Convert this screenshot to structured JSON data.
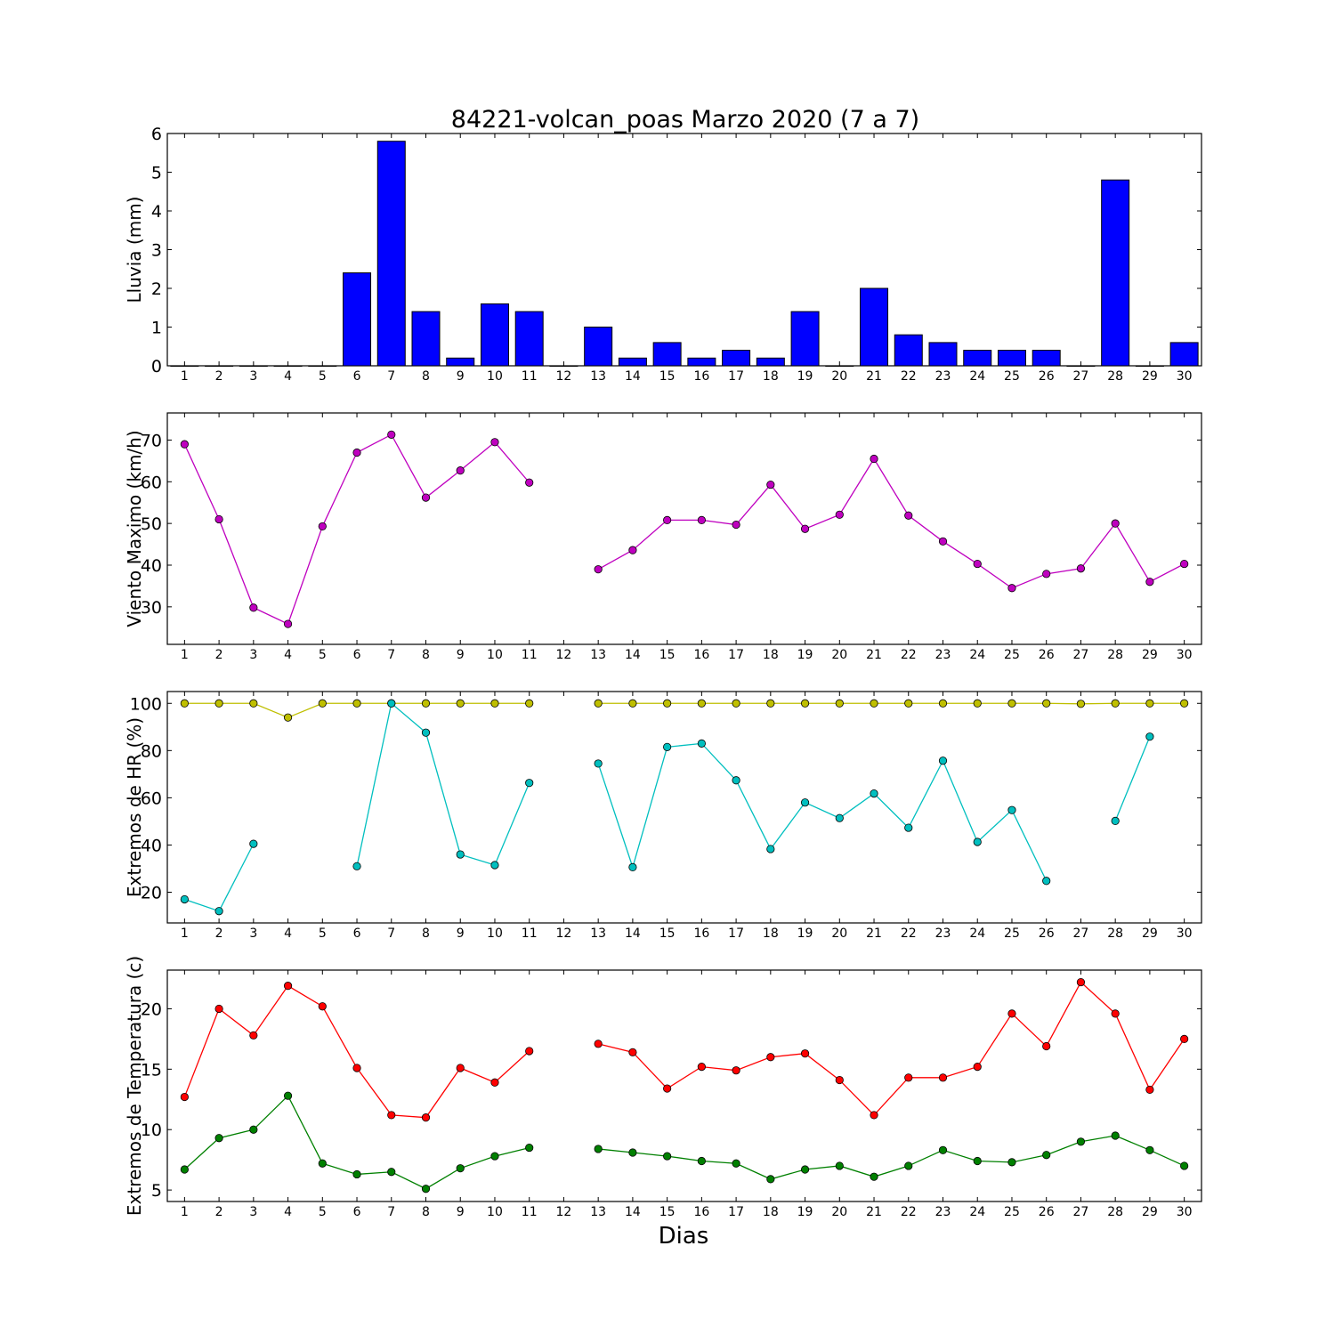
{
  "title": "84221-volcan_poas Marzo 2020  (7 a 7)",
  "xlabel": "Dias",
  "days": [
    1,
    2,
    3,
    4,
    5,
    6,
    7,
    8,
    9,
    10,
    11,
    12,
    13,
    14,
    15,
    16,
    17,
    18,
    19,
    20,
    21,
    22,
    23,
    24,
    25,
    26,
    27,
    28,
    29,
    30
  ],
  "chart_data": [
    {
      "type": "bar",
      "ylabel": "Lluvia (mm)",
      "ylim": [
        0,
        6
      ],
      "yticks": [
        0,
        1,
        2,
        3,
        4,
        5,
        6
      ],
      "series": [
        {
          "color": "#0000ff",
          "values": [
            0,
            0,
            0,
            0,
            0,
            2.4,
            5.8,
            1.4,
            0.2,
            1.6,
            1.4,
            0,
            1.0,
            0.2,
            0.6,
            0.2,
            0.4,
            0.2,
            1.4,
            0,
            2.0,
            0.8,
            0.6,
            0.4,
            0.4,
            0.4,
            0,
            4.8,
            0,
            0.6
          ]
        }
      ]
    },
    {
      "type": "line",
      "ylabel": "Viento Maximo (km/h)",
      "ylim": [
        21,
        76.5
      ],
      "yticks": [
        30,
        40,
        50,
        60,
        70
      ],
      "series": [
        {
          "color": "#bf00bf",
          "values": [
            69,
            51,
            29.8,
            25.9,
            49.3,
            67,
            71.3,
            56.2,
            62.7,
            69.5,
            59.8,
            null,
            39,
            43.6,
            50.8,
            50.8,
            49.7,
            59.3,
            48.7,
            52.1,
            65.5,
            51.9,
            45.7,
            40.3,
            34.5,
            37.9,
            39.2,
            50,
            36,
            40.3
          ]
        }
      ]
    },
    {
      "type": "line",
      "ylabel": "Extremos de HR (%)",
      "ylim": [
        7,
        105
      ],
      "yticks": [
        20,
        40,
        60,
        80,
        100
      ],
      "series": [
        {
          "color": "#bfbf00",
          "values": [
            100,
            100,
            100,
            94,
            100,
            100,
            100,
            100,
            100,
            100,
            100,
            null,
            100,
            100,
            100,
            100,
            100,
            100,
            100,
            100,
            100,
            100,
            100,
            100,
            100,
            100,
            99.8,
            100,
            100,
            100
          ]
        },
        {
          "color": "#00bfbf",
          "values": [
            17,
            12,
            40.5,
            null,
            null,
            31,
            100,
            87.6,
            36,
            31.5,
            66.3,
            null,
            74.5,
            30.6,
            81.5,
            83,
            67.4,
            38.3,
            58,
            51.4,
            61.8,
            47.3,
            75.7,
            41.3,
            54.8,
            24.8,
            null,
            50.2,
            85.9,
            null
          ]
        }
      ]
    },
    {
      "type": "line",
      "ylabel": "Extremos de Temperatura (c)",
      "ylim": [
        4.05,
        23.2
      ],
      "yticks": [
        5,
        10,
        15,
        20
      ],
      "series": [
        {
          "color": "#ff0000",
          "values": [
            12.7,
            20,
            17.8,
            21.9,
            20.2,
            15.1,
            11.2,
            11,
            15.1,
            13.9,
            16.5,
            null,
            17.1,
            16.4,
            13.4,
            15.2,
            14.9,
            16,
            16.3,
            14.1,
            11.2,
            14.3,
            14.3,
            15.2,
            19.6,
            16.9,
            22.2,
            19.6,
            13.3,
            17.5
          ]
        },
        {
          "color": "#008000",
          "values": [
            6.7,
            9.3,
            10,
            12.8,
            7.2,
            6.3,
            6.5,
            5.1,
            6.8,
            7.8,
            8.5,
            null,
            8.4,
            8.1,
            7.8,
            7.4,
            7.2,
            5.9,
            6.7,
            7,
            6.1,
            7,
            8.3,
            7.4,
            7.3,
            7.9,
            9,
            9.5,
            8.3,
            7
          ]
        }
      ]
    }
  ]
}
